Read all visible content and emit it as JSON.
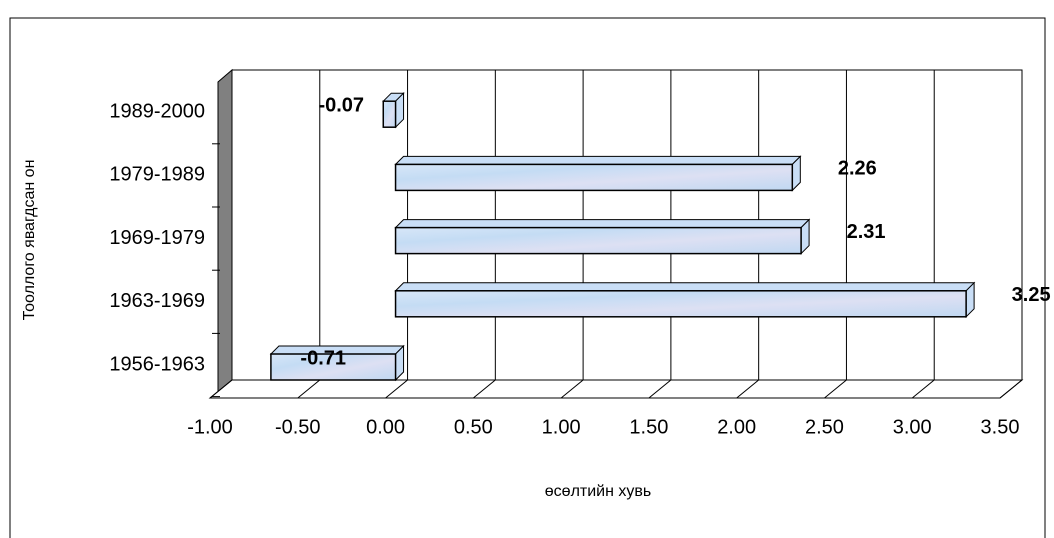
{
  "chart_data": {
    "type": "bar3d-horizontal",
    "x_axis_title": "өсөлтийн хувь",
    "y_axis_title": "Тооллого явагдсан он",
    "categories": [
      "1956-1963",
      "1963-1969",
      "1969-1979",
      "1979-1989",
      "1989-2000"
    ],
    "values": [
      -0.71,
      3.25,
      2.31,
      2.26,
      -0.07
    ],
    "color": "#c9def6",
    "xlim": [
      -1,
      3.5
    ],
    "xticks": [
      {
        "value": -1,
        "label": "-1.00"
      },
      {
        "value": -0.5,
        "label": "-0.50"
      },
      {
        "value": 0,
        "label": "0.00"
      },
      {
        "value": 0.5,
        "label": "0.50"
      },
      {
        "value": 1,
        "label": "1.00"
      },
      {
        "value": 1.5,
        "label": "1.50"
      },
      {
        "value": 2,
        "label": "2.00"
      },
      {
        "value": 2.5,
        "label": "2.50"
      },
      {
        "value": 3,
        "label": "3.00"
      },
      {
        "value": 3.5,
        "label": "3.50"
      }
    ],
    "grid": true
  }
}
